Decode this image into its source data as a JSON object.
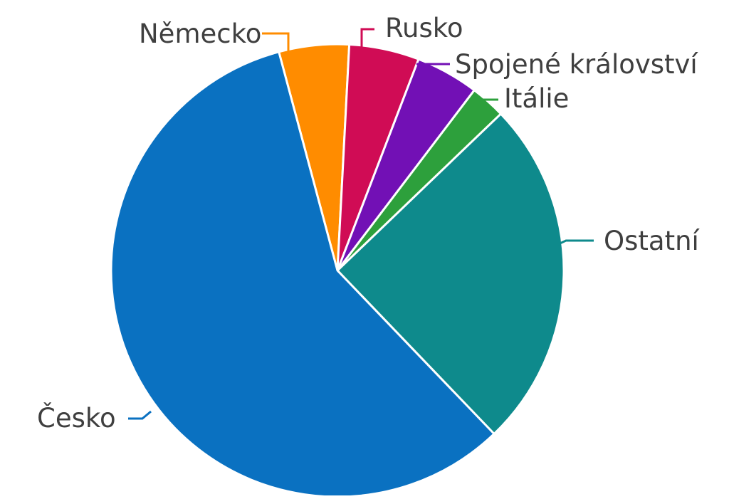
{
  "chart_data": {
    "type": "pie",
    "title": "",
    "start_angle_deg": -15,
    "direction": "clockwise",
    "slices": [
      {
        "label": "Německo",
        "value": 5.0,
        "color": "#ff8c00"
      },
      {
        "label": "Rusko",
        "value": 5.0,
        "color": "#d00c55"
      },
      {
        "label": "Spojené království",
        "value": 4.5,
        "color": "#7210b5"
      },
      {
        "label": "Itálie",
        "value": 2.5,
        "color": "#2da03c"
      },
      {
        "label": "Ostatní",
        "value": 25.0,
        "color": "#0e8a8c"
      },
      {
        "label": "Česko",
        "value": 58.0,
        "color": "#0a71c1"
      }
    ],
    "legend": "none",
    "labels": "outside with leader lines"
  }
}
